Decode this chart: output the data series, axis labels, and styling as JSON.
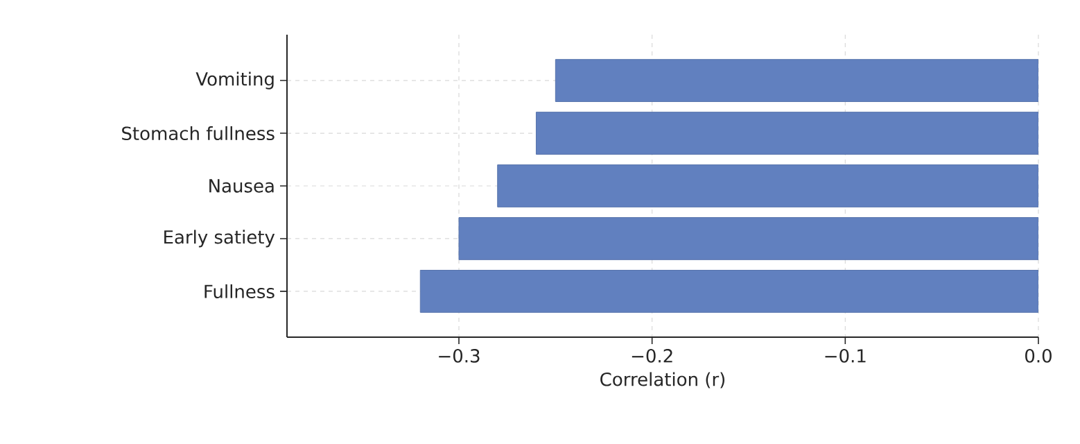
{
  "chart_data": {
    "type": "bar",
    "orientation": "horizontal",
    "xlabel": "Correlation (r)",
    "categories": [
      "Vomiting",
      "Stomach fullness",
      "Nausea",
      "Early satiety",
      "Fullness"
    ],
    "values": [
      -0.25,
      -0.26,
      -0.28,
      -0.3,
      -0.32
    ],
    "color": "#6180bf",
    "xlim": [
      -0.389,
      0.0
    ],
    "xticks": [
      {
        "value": -0.3,
        "label": "−0.3"
      },
      {
        "value": -0.2,
        "label": "−0.2"
      },
      {
        "value": -0.1,
        "label": "−0.1"
      },
      {
        "value": 0.0,
        "label": "0.0"
      }
    ],
    "grid": true
  }
}
